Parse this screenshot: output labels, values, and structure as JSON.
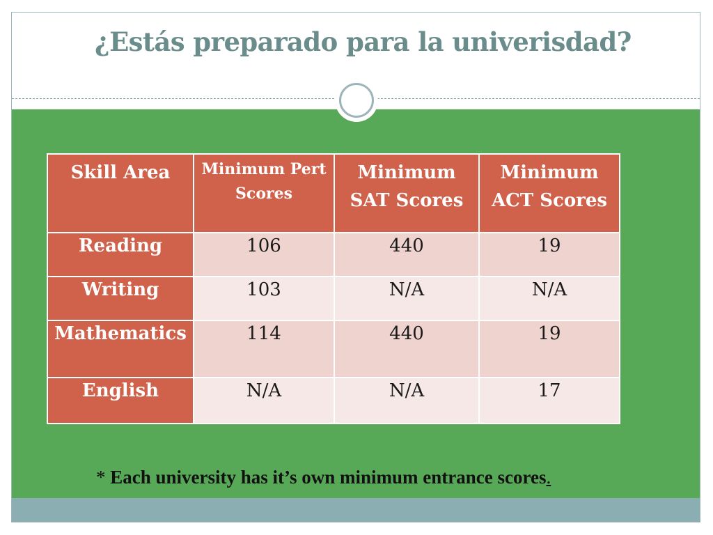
{
  "slide": {
    "title": "¿Estás preparado para la univerisdad?",
    "note_star": "*",
    "note_text": "Each university has it’s own minimum entrance scores",
    "note_end": "."
  },
  "table": {
    "headers": [
      "Skill Area",
      "Minimum Pert Scores",
      "Minimum SAT Scores",
      "Minimum ACT Scores"
    ],
    "rows": [
      [
        "Reading",
        "106",
        "440",
        "19"
      ],
      [
        "Writing",
        "103",
        "N/A",
        "N/A"
      ],
      [
        "Mathematics",
        "114",
        "440",
        "19"
      ],
      [
        "English",
        "N/A",
        "N/A",
        "17"
      ]
    ]
  },
  "colors": {
    "title": "#6a8d8c",
    "green_background": "#58a957",
    "header_fill": "#d0614a",
    "row_fill_light": "#efd3cf",
    "row_fill_lighter": "#f6e8e6",
    "footer_band": "#8aaeb1"
  }
}
